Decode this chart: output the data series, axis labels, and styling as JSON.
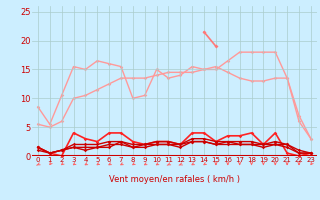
{
  "background_color": "#cceeff",
  "grid_color": "#aacccc",
  "xlabel": "Vent moyen/en rafales ( km/h )",
  "x": [
    0,
    1,
    2,
    3,
    4,
    5,
    6,
    7,
    8,
    9,
    10,
    11,
    12,
    13,
    14,
    15,
    16,
    17,
    18,
    19,
    20,
    21,
    22,
    23
  ],
  "ylim": [
    0,
    26
  ],
  "yticks": [
    0,
    5,
    10,
    15,
    20,
    25
  ],
  "curve_light1": [
    8.5,
    5.5,
    10.5,
    15.5,
    15.0,
    16.5,
    16.0,
    15.5,
    10.0,
    10.5,
    15.0,
    13.5,
    14.0,
    15.5,
    15.0,
    15.0,
    16.5,
    18.0,
    18.0,
    18.0,
    18.0,
    13.5,
    7.0,
    3.0
  ],
  "curve_light2": [
    5.5,
    5.0,
    6.0,
    10.0,
    10.5,
    11.5,
    12.5,
    13.5,
    13.5,
    13.5,
    14.0,
    14.5,
    14.5,
    14.5,
    15.0,
    15.5,
    14.5,
    13.5,
    13.0,
    13.0,
    13.5,
    13.5,
    6.0,
    3.0
  ],
  "curve_peak": [
    null,
    null,
    null,
    null,
    null,
    null,
    null,
    null,
    null,
    null,
    null,
    null,
    null,
    null,
    21.5,
    19.0,
    null,
    null,
    null,
    null,
    null,
    null,
    null,
    null
  ],
  "curve_dark1": [
    1.5,
    0.5,
    0.0,
    4.0,
    3.0,
    2.5,
    4.0,
    4.0,
    2.5,
    2.0,
    2.5,
    2.5,
    2.0,
    4.0,
    4.0,
    2.5,
    3.5,
    3.5,
    4.0,
    2.0,
    4.0,
    0.5,
    0.0,
    0.5
  ],
  "curve_dark2": [
    1.0,
    0.5,
    1.0,
    1.5,
    1.0,
    1.5,
    1.5,
    2.5,
    1.5,
    2.0,
    2.0,
    2.0,
    2.0,
    2.5,
    2.5,
    2.0,
    2.5,
    2.0,
    2.0,
    2.0,
    2.0,
    1.5,
    0.5,
    0.5
  ],
  "curve_dark3": [
    1.5,
    0.5,
    1.0,
    2.0,
    2.0,
    2.0,
    2.5,
    2.5,
    2.0,
    2.0,
    2.5,
    2.5,
    2.0,
    3.0,
    3.0,
    2.5,
    2.5,
    2.5,
    2.5,
    2.0,
    2.5,
    2.0,
    0.5,
    0.5
  ],
  "curve_dark4": [
    1.5,
    0.5,
    1.0,
    1.5,
    1.5,
    1.5,
    2.0,
    2.0,
    1.5,
    1.5,
    2.0,
    2.0,
    1.5,
    2.5,
    2.5,
    2.0,
    2.0,
    2.0,
    2.0,
    1.5,
    2.0,
    2.0,
    1.0,
    0.5
  ],
  "light_color": "#ff9999",
  "peak_color": "#ff7777",
  "dark_color1": "#ff2222",
  "dark_color2": "#cc0000",
  "arrow_color": "#ff6666",
  "tick_color": "#cc0000",
  "label_color": "#cc0000",
  "xlabel_fontsize": 6,
  "ytick_fontsize": 6,
  "xtick_fontsize": 5
}
